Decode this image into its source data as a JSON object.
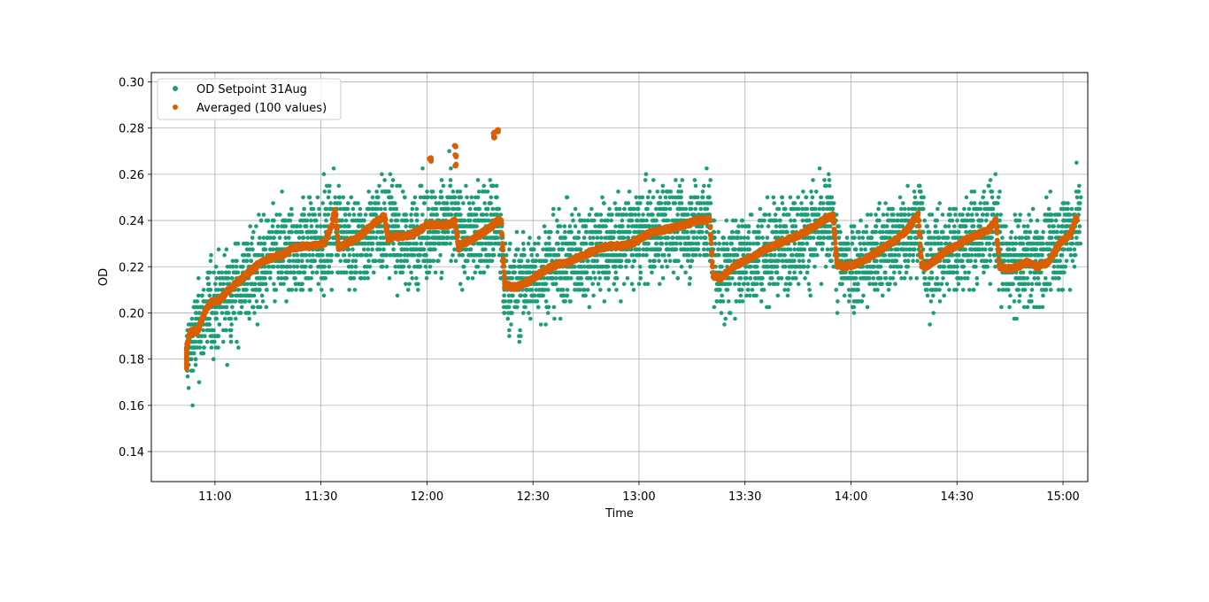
{
  "chart_data": {
    "type": "scatter",
    "title": "",
    "xlabel": "Time",
    "ylabel": "OD",
    "x_ticks": [
      "11:00",
      "11:30",
      "12:00",
      "12:30",
      "13:00",
      "13:30",
      "14:00",
      "14:30",
      "15:00"
    ],
    "y_ticks": [
      "0.14",
      "0.16",
      "0.18",
      "0.20",
      "0.22",
      "0.24",
      "0.26",
      "0.28",
      "0.30"
    ],
    "xlim": [
      "10:42",
      "15:07"
    ],
    "ylim": [
      0.127,
      0.304
    ],
    "grid": true,
    "legend_position": "top-left",
    "series": [
      {
        "name": "OD Setpoint 31Aug",
        "color": "#1b9e77",
        "marker": "dot",
        "note_noise_band": 0.015,
        "x": [
          "10:52",
          "10:55",
          "10:58",
          "11:02",
          "11:06",
          "11:10",
          "11:15",
          "11:20",
          "11:25",
          "11:30",
          "11:33",
          "11:35",
          "11:38",
          "11:42",
          "11:46",
          "11:50",
          "11:53",
          "11:57",
          "12:02",
          "12:06",
          "12:08",
          "12:12",
          "12:16",
          "12:20",
          "12:22",
          "12:27",
          "12:32",
          "12:38",
          "12:44",
          "12:50",
          "12:56",
          "13:02",
          "13:08",
          "13:14",
          "13:20",
          "13:22",
          "13:26",
          "13:32",
          "13:38",
          "13:44",
          "13:50",
          "13:55",
          "13:56",
          "14:02",
          "14:08",
          "14:14",
          "14:20",
          "14:21",
          "14:26",
          "14:32",
          "14:38",
          "14:41",
          "14:43",
          "14:48",
          "14:54",
          "15:00",
          "15:05"
        ],
        "y": [
          0.18,
          0.192,
          0.2,
          0.205,
          0.21,
          0.216,
          0.222,
          0.226,
          0.228,
          0.23,
          0.234,
          0.24,
          0.228,
          0.232,
          0.238,
          0.239,
          0.23,
          0.233,
          0.236,
          0.24,
          0.236,
          0.233,
          0.236,
          0.24,
          0.21,
          0.213,
          0.218,
          0.222,
          0.226,
          0.229,
          0.231,
          0.234,
          0.236,
          0.237,
          0.24,
          0.216,
          0.22,
          0.224,
          0.228,
          0.232,
          0.236,
          0.24,
          0.222,
          0.221,
          0.226,
          0.232,
          0.242,
          0.221,
          0.226,
          0.23,
          0.234,
          0.24,
          0.22,
          0.221,
          0.224,
          0.232,
          0.242
        ]
      },
      {
        "name": "Averaged (100 values)",
        "color": "#d95f02",
        "marker": "dot",
        "x": [
          "10:52",
          "10:52",
          "10:53",
          "10:55",
          "10:57",
          "10:59",
          "11:01",
          "11:04",
          "11:07",
          "11:10",
          "11:13",
          "11:16",
          "11:19",
          "11:22",
          "11:25",
          "11:28",
          "11:31",
          "11:33",
          "11:34",
          "11:35",
          "11:37",
          "11:40",
          "11:43",
          "11:46",
          "11:48",
          "11:49",
          "11:51",
          "11:54",
          "11:57",
          "12:00",
          "12:03",
          "12:06",
          "12:08",
          "12:09",
          "12:10",
          "12:13",
          "12:16",
          "12:18",
          "12:20",
          "12:21",
          "12:22",
          "12:25",
          "12:28",
          "12:31",
          "12:34",
          "12:37",
          "12:40",
          "12:43",
          "12:46",
          "12:49",
          "12:52",
          "12:55",
          "12:58",
          "13:01",
          "13:04",
          "13:07",
          "13:10",
          "13:13",
          "13:16",
          "13:19",
          "13:20",
          "13:21",
          "13:23",
          "13:26",
          "13:29",
          "13:32",
          "13:35",
          "13:38",
          "13:41",
          "13:44",
          "13:47",
          "13:50",
          "13:53",
          "13:55",
          "13:56",
          "13:58",
          "14:01",
          "14:04",
          "14:07",
          "14:10",
          "14:13",
          "14:16",
          "14:19",
          "14:20",
          "14:21",
          "14:24",
          "14:27",
          "14:30",
          "14:33",
          "14:36",
          "14:39",
          "14:41",
          "14:42",
          "14:44",
          "14:47",
          "14:50",
          "14:53",
          "14:56",
          "14:59",
          "15:02",
          "15:04"
        ],
        "y": [
          0.176,
          0.185,
          0.192,
          0.192,
          0.2,
          0.205,
          0.205,
          0.21,
          0.214,
          0.218,
          0.222,
          0.224,
          0.225,
          0.228,
          0.229,
          0.229,
          0.23,
          0.238,
          0.245,
          0.228,
          0.23,
          0.232,
          0.236,
          0.24,
          0.242,
          0.232,
          0.233,
          0.233,
          0.235,
          0.238,
          0.238,
          0.238,
          0.24,
          0.228,
          0.23,
          0.232,
          0.235,
          0.237,
          0.24,
          0.24,
          0.212,
          0.211,
          0.213,
          0.216,
          0.219,
          0.221,
          0.222,
          0.224,
          0.226,
          0.228,
          0.229,
          0.229,
          0.23,
          0.233,
          0.235,
          0.236,
          0.237,
          0.238,
          0.24,
          0.24,
          0.241,
          0.216,
          0.215,
          0.219,
          0.222,
          0.224,
          0.227,
          0.229,
          0.231,
          0.233,
          0.235,
          0.238,
          0.241,
          0.242,
          0.221,
          0.22,
          0.221,
          0.223,
          0.226,
          0.229,
          0.232,
          0.236,
          0.243,
          0.221,
          0.22,
          0.223,
          0.227,
          0.229,
          0.232,
          0.234,
          0.236,
          0.24,
          0.22,
          0.219,
          0.22,
          0.222,
          0.22,
          0.222,
          0.23,
          0.234,
          0.242
        ],
        "outliers": {
          "x": [
            "12:01",
            "12:01",
            "12:08",
            "12:08",
            "12:08",
            "12:19",
            "12:19",
            "12:20"
          ],
          "y": [
            0.266,
            0.267,
            0.272,
            0.268,
            0.264,
            0.276,
            0.278,
            0.279
          ]
        }
      }
    ]
  }
}
